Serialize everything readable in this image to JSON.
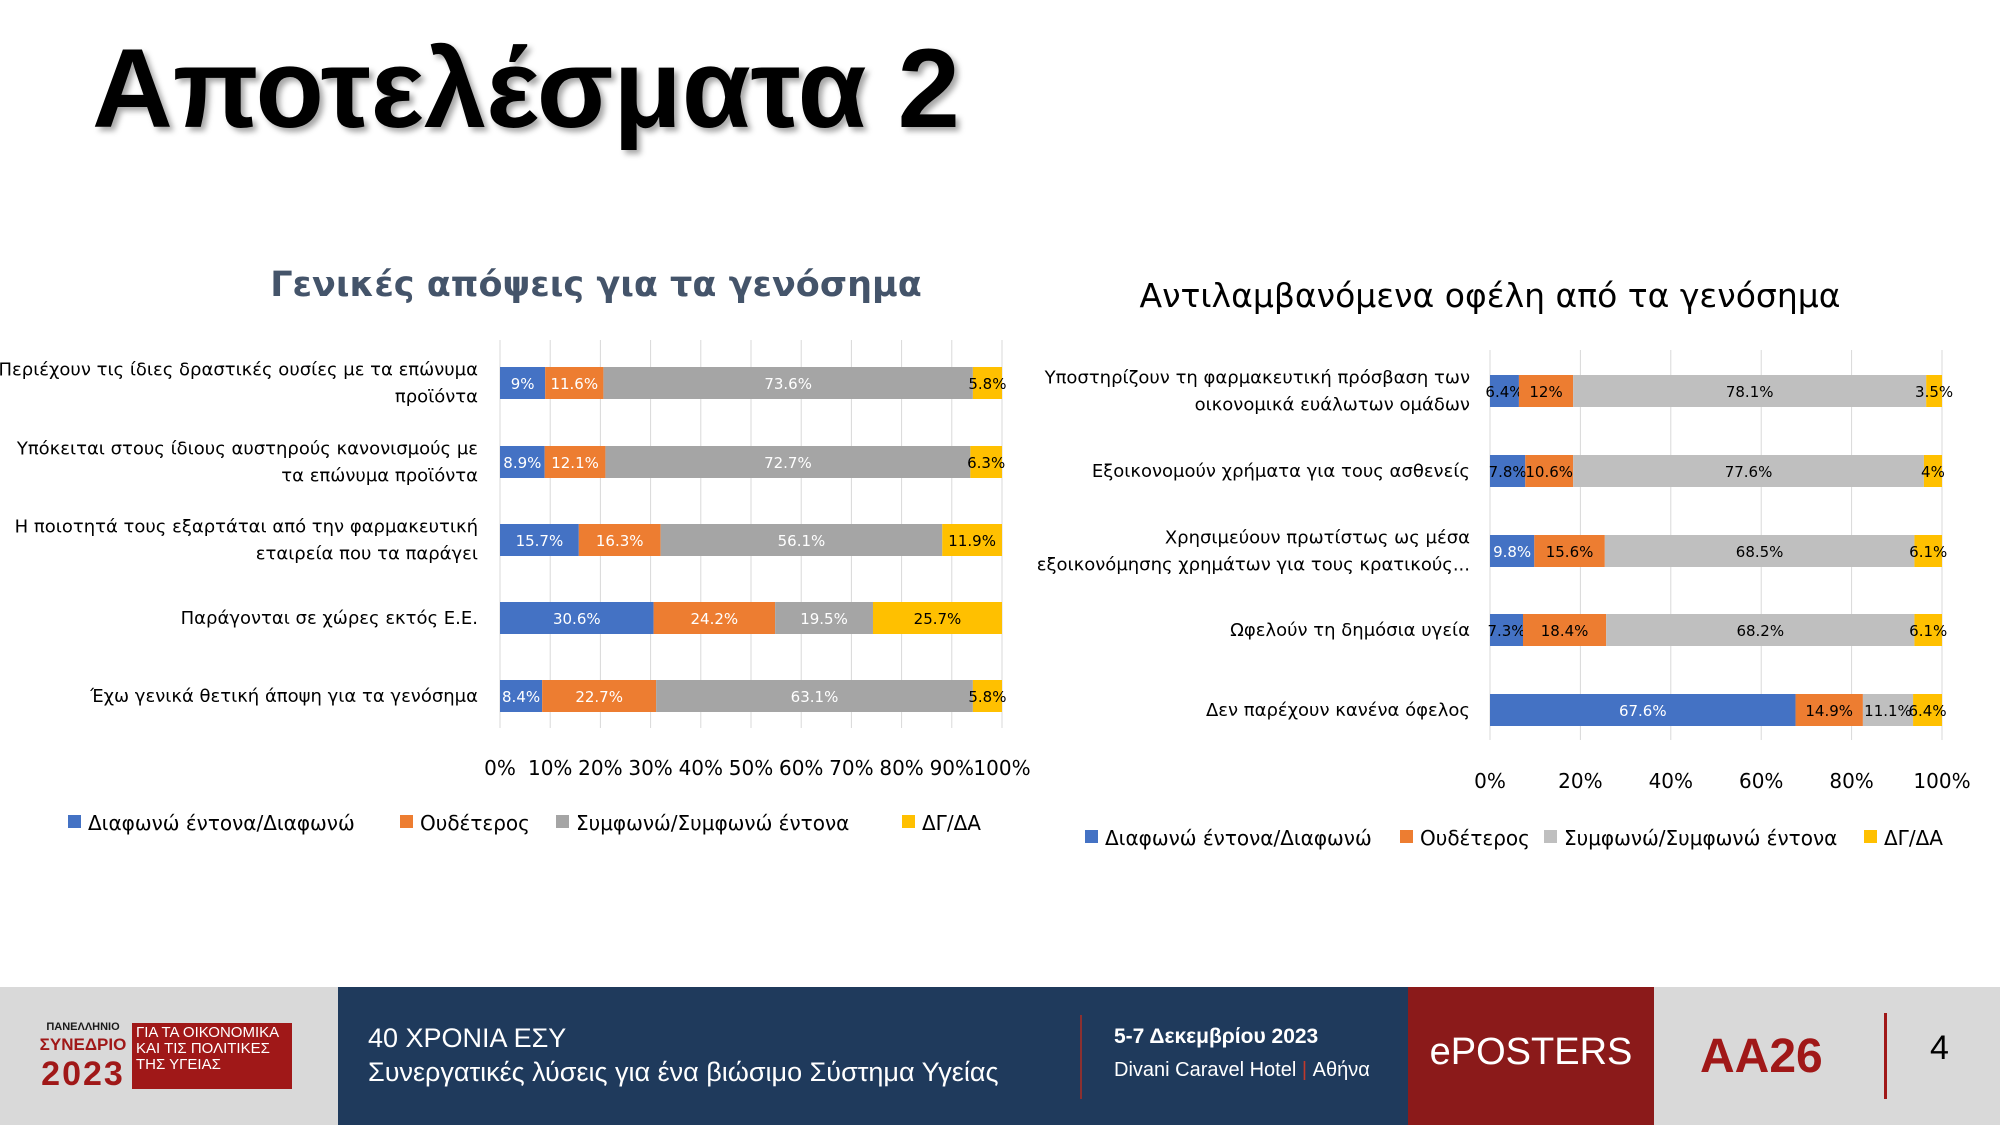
{
  "slide": {
    "title": "Αποτελέσματα 2",
    "page_number": "4"
  },
  "chart_data": [
    {
      "type": "bar",
      "orientation": "horizontal",
      "stacked": "percent",
      "title": "Γενικές απόψεις για τα γενόσημα",
      "categories": [
        [
          "Περιέχουν τις ίδιες δραστικές ουσίες με τα επώνυμα",
          "προϊόντα"
        ],
        [
          "Υπόκειται στους ίδιους αυστηρούς κανονισμούς με",
          "τα επώνυμα προϊόντα"
        ],
        [
          "Η ποιοτητά τους εξαρτάται από την φαρμακευτική",
          "εταιρεία που τα παράγει"
        ],
        [
          "Παράγονται σε χώρες εκτός Ε.Ε."
        ],
        [
          "Έχω γενικά θετική άποψη για τα γενόσημα"
        ]
      ],
      "series": [
        {
          "name": "Διαφωνώ έντονα/Διαφωνώ",
          "color": "#4472c4",
          "values": [
            9,
            8.9,
            15.7,
            30.6,
            8.4
          ],
          "labels": [
            "9%",
            "8.9%",
            "15.7%",
            "30.6%",
            "8.4%"
          ]
        },
        {
          "name": "Ουδέτερος",
          "color": "#ed7d31",
          "values": [
            11.6,
            12.1,
            16.3,
            24.2,
            22.7
          ],
          "labels": [
            "11.6%",
            "12.1%",
            "16.3%",
            "24.2%",
            "22.7%"
          ]
        },
        {
          "name": "Συμφωνώ/Συμφωνώ έντονα",
          "color": "#a5a5a5",
          "values": [
            73.6,
            72.7,
            56.1,
            19.5,
            63.1
          ],
          "labels": [
            "73.6%",
            "72.7%",
            "56.1%",
            "19.5%",
            "63.1%"
          ]
        },
        {
          "name": "ΔΓ/ΔΑ",
          "color": "#ffc000",
          "values": [
            5.8,
            6.3,
            11.9,
            25.7,
            5.8
          ],
          "labels": [
            "5.8%",
            "6.3%",
            "11.9%",
            "25.7%",
            "5.8%"
          ]
        }
      ],
      "xticks": [
        "0%",
        "10%",
        "20%",
        "30%",
        "40%",
        "50%",
        "60%",
        "70%",
        "80%",
        "90%",
        "100%"
      ],
      "xlim": [
        0,
        100
      ],
      "legend_position": "bottom",
      "grid": true
    },
    {
      "type": "bar",
      "orientation": "horizontal",
      "stacked": "percent",
      "title": "Αντιλαμβανόμενα οφέλη από τα γενόσημα",
      "categories": [
        [
          "Υποστηρίζουν τη φαρμακευτική πρόσβαση των",
          "οικονομικά ευάλωτων ομάδων"
        ],
        [
          "Εξοικονομούν χρήματα για τους ασθενείς"
        ],
        [
          "Χρησιμεύουν πρωτίστως ως μέσα",
          "εξοικονόμησης χρημάτων για τους κρατικούς..."
        ],
        [
          "Ωφελούν τη δημόσια υγεία"
        ],
        [
          "Δεν παρέχουν κανένα όφελος"
        ]
      ],
      "series": [
        {
          "name": "Διαφωνώ έντονα/Διαφωνώ",
          "color": "#4472c4",
          "values": [
            6.4,
            7.8,
            9.8,
            7.3,
            67.6
          ],
          "labels": [
            "6.4%",
            "7.8%",
            "9.8%",
            "7.3%",
            "67.6%"
          ]
        },
        {
          "name": "Ουδέτερος",
          "color": "#ed7d31",
          "values": [
            12,
            10.6,
            15.6,
            18.4,
            14.9
          ],
          "labels": [
            "12%",
            "10.6%",
            "15.6%",
            "18.4%",
            "14.9%"
          ]
        },
        {
          "name": "Συμφωνώ/Συμφωνώ έντονα",
          "color": "#bfbfbf",
          "values": [
            78.1,
            77.6,
            68.5,
            68.2,
            11.1
          ],
          "labels": [
            "78.1%",
            "77.6%",
            "68.5%",
            "68.2%",
            "11.1%"
          ]
        },
        {
          "name": "ΔΓ/ΔΑ",
          "color": "#ffc000",
          "values": [
            3.5,
            4,
            6.1,
            6.1,
            6.4
          ],
          "labels": [
            "3.5%",
            "4%",
            "6.1%",
            "6.1%",
            "6.4%"
          ]
        }
      ],
      "xticks": [
        "0%",
        "20%",
        "40%",
        "60%",
        "80%",
        "100%"
      ],
      "xlim": [
        0,
        100
      ],
      "legend_position": "bottom",
      "grid": true
    }
  ],
  "footer": {
    "logo_top": "ΠΑΝΕΛΛΗΝΙΟ",
    "logo_mid": "ΣΥΝΕΔΡΙΟ",
    "logo_year": "2023",
    "logo_box_lines": [
      "ΓΙΑ ΤΑ ΟΙΚΟΝΟΜΙΚΑ",
      "ΚΑΙ ΤΙΣ ΠΟΛΙΤΙΚΕΣ",
      "ΤΗΣ ΥΓΕΙΑΣ"
    ],
    "line1": "40 ΧΡΟΝΙΑ ΕΣΥ",
    "line2": "Συνεργατικές λύσεις για ένα βιώσιμο Σύστημα Υγείας",
    "date": "5-7 Δεκεμβρίου 2023",
    "venue": "Divani Caravel Hotel",
    "venue_sep": "|",
    "city": "Αθήνα",
    "eposters": "ePOSTERS",
    "code": "AA26"
  }
}
